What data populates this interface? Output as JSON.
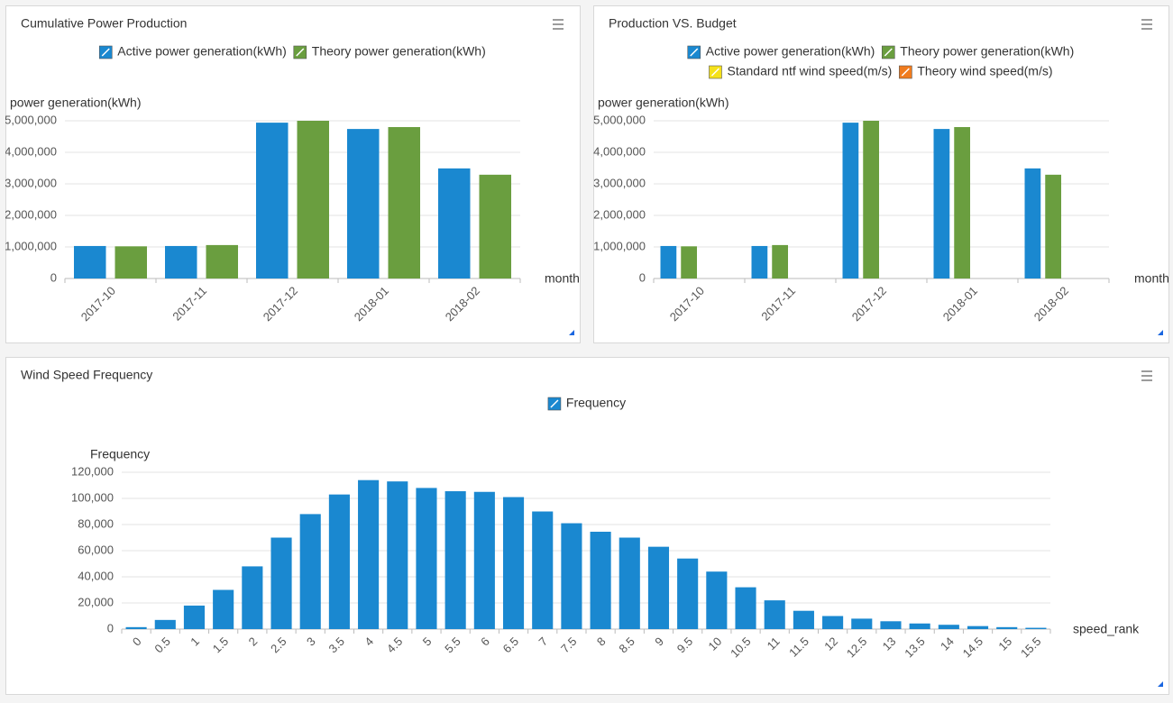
{
  "chart_data": [
    {
      "type": "bar",
      "title": "Cumulative Power Production",
      "ylabel": "power generation(kWh)",
      "xlabel": "month",
      "categories": [
        "2017-10",
        "2017-11",
        "2017-12",
        "2018-01",
        "2018-02"
      ],
      "series": [
        {
          "name": "Active power generation(kWh)",
          "color": "#1a88d0",
          "values": [
            1030000,
            1030000,
            4940000,
            4740000,
            3490000
          ]
        },
        {
          "name": "Theory power generation(kWh)",
          "color": "#6a9e3f",
          "values": [
            1020000,
            1060000,
            5000000,
            4800000,
            3290000
          ]
        }
      ],
      "ylim": [
        0,
        5000000
      ],
      "yticks": [
        0,
        {
          "value": 1000000,
          "label": "1,000,000"
        },
        {
          "value": 2000000,
          "label": "2,000,000"
        },
        {
          "value": 3000000,
          "label": "3,000,000"
        },
        {
          "value": 4000000,
          "label": "4,000,000"
        },
        {
          "value": 5000000,
          "label": "5,000,000"
        }
      ],
      "grid": true
    },
    {
      "type": "bar",
      "title": "Production VS. Budget",
      "ylabel": "power generation(kWh)",
      "xlabel": "month",
      "categories": [
        "2017-10",
        "2017-11",
        "2017-12",
        "2018-01",
        "2018-02"
      ],
      "series": [
        {
          "name": "Active power generation(kWh)",
          "color": "#1a88d0",
          "values": [
            1030000,
            1030000,
            4940000,
            4740000,
            3490000
          ]
        },
        {
          "name": "Theory power generation(kWh)",
          "color": "#6a9e3f",
          "values": [
            1020000,
            1060000,
            5000000,
            4800000,
            3290000
          ]
        },
        {
          "name": "Standard ntf wind speed(m/s)",
          "color": "#f5e11a",
          "values": [
            null,
            null,
            null,
            null,
            null
          ]
        },
        {
          "name": "Theory wind speed(m/s)",
          "color": "#f07b1e",
          "values": [
            null,
            null,
            null,
            null,
            null
          ]
        }
      ],
      "ylim": [
        0,
        5000000
      ],
      "yticks": [
        0,
        {
          "value": 1000000,
          "label": "1,000,000"
        },
        {
          "value": 2000000,
          "label": "2,000,000"
        },
        {
          "value": 3000000,
          "label": "3,000,000"
        },
        {
          "value": 4000000,
          "label": "4,000,000"
        },
        {
          "value": 5000000,
          "label": "5,000,000"
        }
      ],
      "grid": true
    },
    {
      "type": "bar",
      "title": "Wind Speed Frequency",
      "ylabel": "Frequency",
      "xlabel": "speed_rank",
      "categories": [
        "0",
        "0.5",
        "1",
        "1.5",
        "2",
        "2.5",
        "3",
        "3.5",
        "4",
        "4.5",
        "5",
        "5.5",
        "6",
        "6.5",
        "7",
        "7.5",
        "8",
        "8.5",
        "9",
        "9.5",
        "10",
        "10.5",
        "11",
        "11.5",
        "12",
        "12.5",
        "13",
        "13.5",
        "14",
        "14.5",
        "15",
        "15.5"
      ],
      "series": [
        {
          "name": "Frequency",
          "color": "#1a88d0",
          "values": [
            1500,
            7000,
            18000,
            30000,
            48000,
            70000,
            88000,
            103000,
            114000,
            113000,
            108000,
            105500,
            105000,
            101000,
            90000,
            81000,
            74500,
            70000,
            63000,
            54000,
            44000,
            32000,
            22000,
            14000,
            10000,
            8000,
            6000,
            4300,
            3300,
            2300,
            1500,
            1000
          ]
        }
      ],
      "ylim": [
        0,
        120000
      ],
      "yticks": [
        0,
        {
          "value": 20000,
          "label": "20,000"
        },
        {
          "value": 40000,
          "label": "40,000"
        },
        {
          "value": 60000,
          "label": "60,000"
        },
        {
          "value": 80000,
          "label": "80,000"
        },
        {
          "value": 100000,
          "label": "100,000"
        },
        {
          "value": 120000,
          "label": "120,000"
        }
      ],
      "grid": true
    }
  ]
}
